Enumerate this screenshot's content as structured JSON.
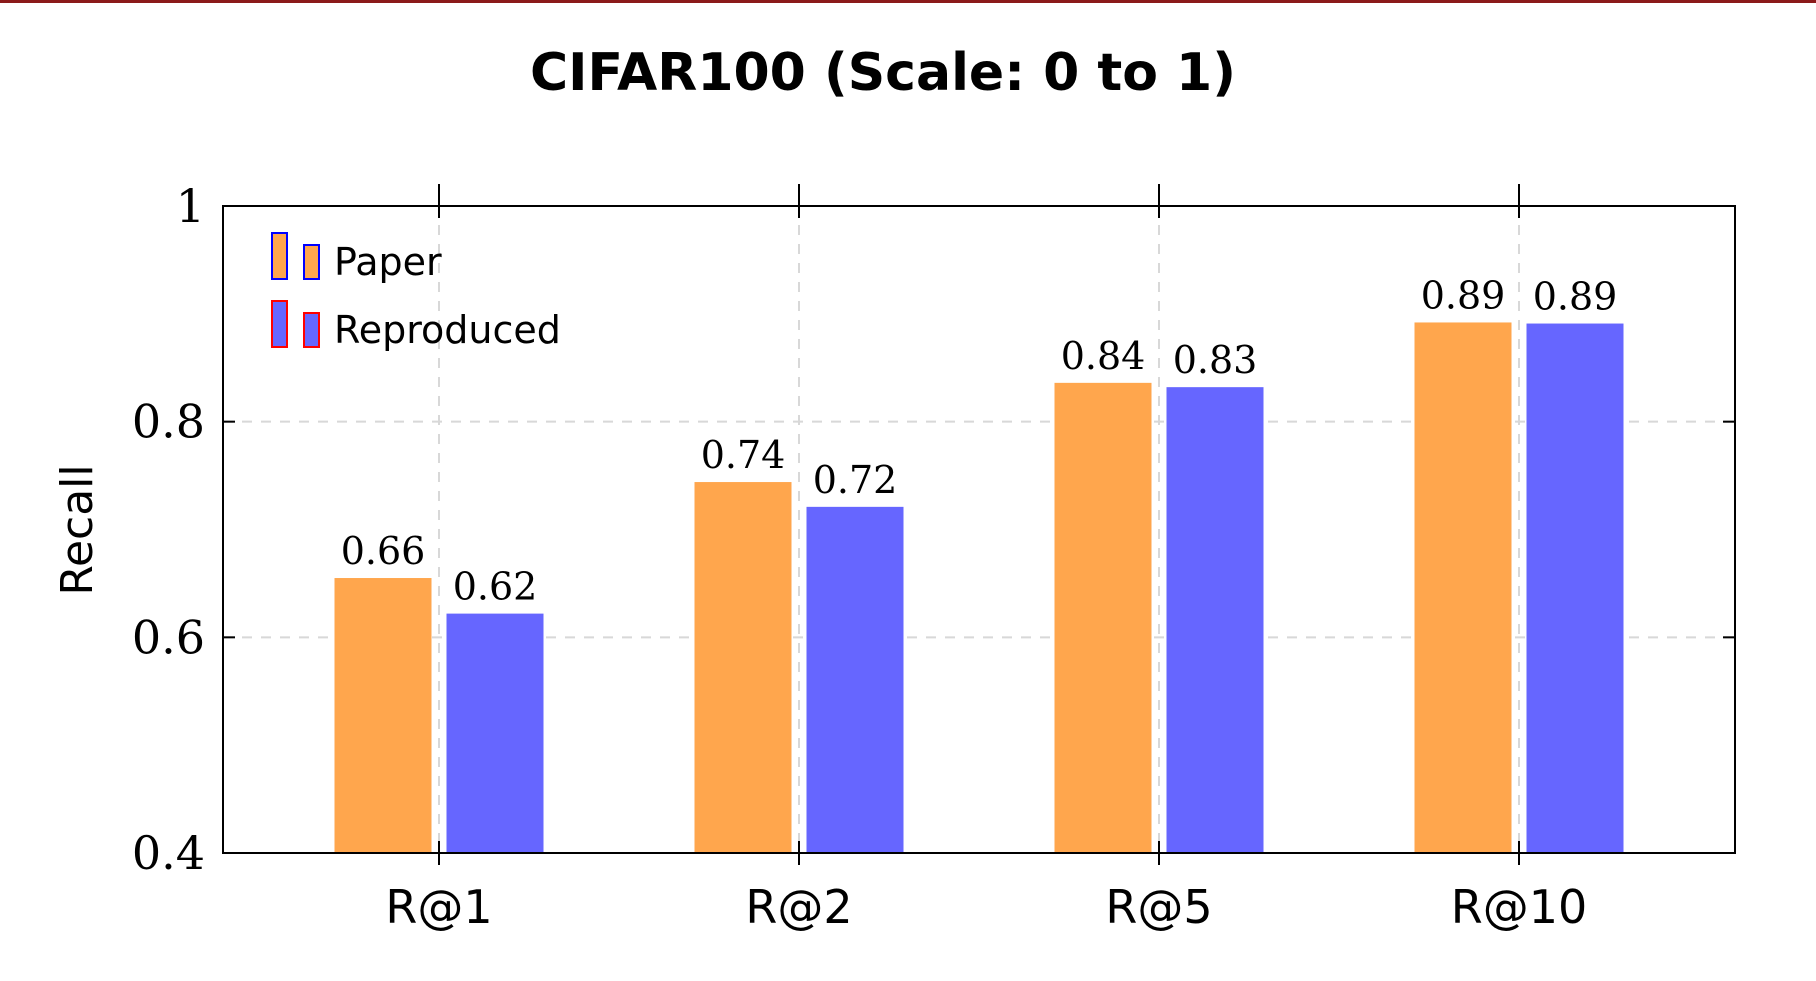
{
  "chart_data": {
    "type": "bar",
    "title": "CIFAR100 (Scale: 0 to 1)",
    "xlabel": "",
    "ylabel": "Recall",
    "categories": [
      "R@1",
      "R@2",
      "R@5",
      "R@10"
    ],
    "series": [
      {
        "name": "Paper",
        "values": [
          0.655,
          0.744,
          0.836,
          0.892
        ],
        "labels": [
          "0.66",
          "0.74",
          "0.84",
          "0.89"
        ],
        "color": "#ffa64d"
      },
      {
        "name": "Reproduced",
        "values": [
          0.622,
          0.721,
          0.832,
          0.891
        ],
        "labels": [
          "0.62",
          "0.72",
          "0.83",
          "0.89"
        ],
        "color": "#6666ff"
      }
    ],
    "ylim": [
      0.4,
      1.0
    ],
    "yticks": [
      0.4,
      0.6,
      0.8,
      1.0
    ],
    "ytick_labels": [
      "0.4",
      "0.6",
      "0.8",
      "1"
    ],
    "grid": true,
    "legend_position": "top-left",
    "legend_swatch_colors": {
      "Paper": "#0000ff",
      "Reproduced": "#ff0000"
    }
  }
}
